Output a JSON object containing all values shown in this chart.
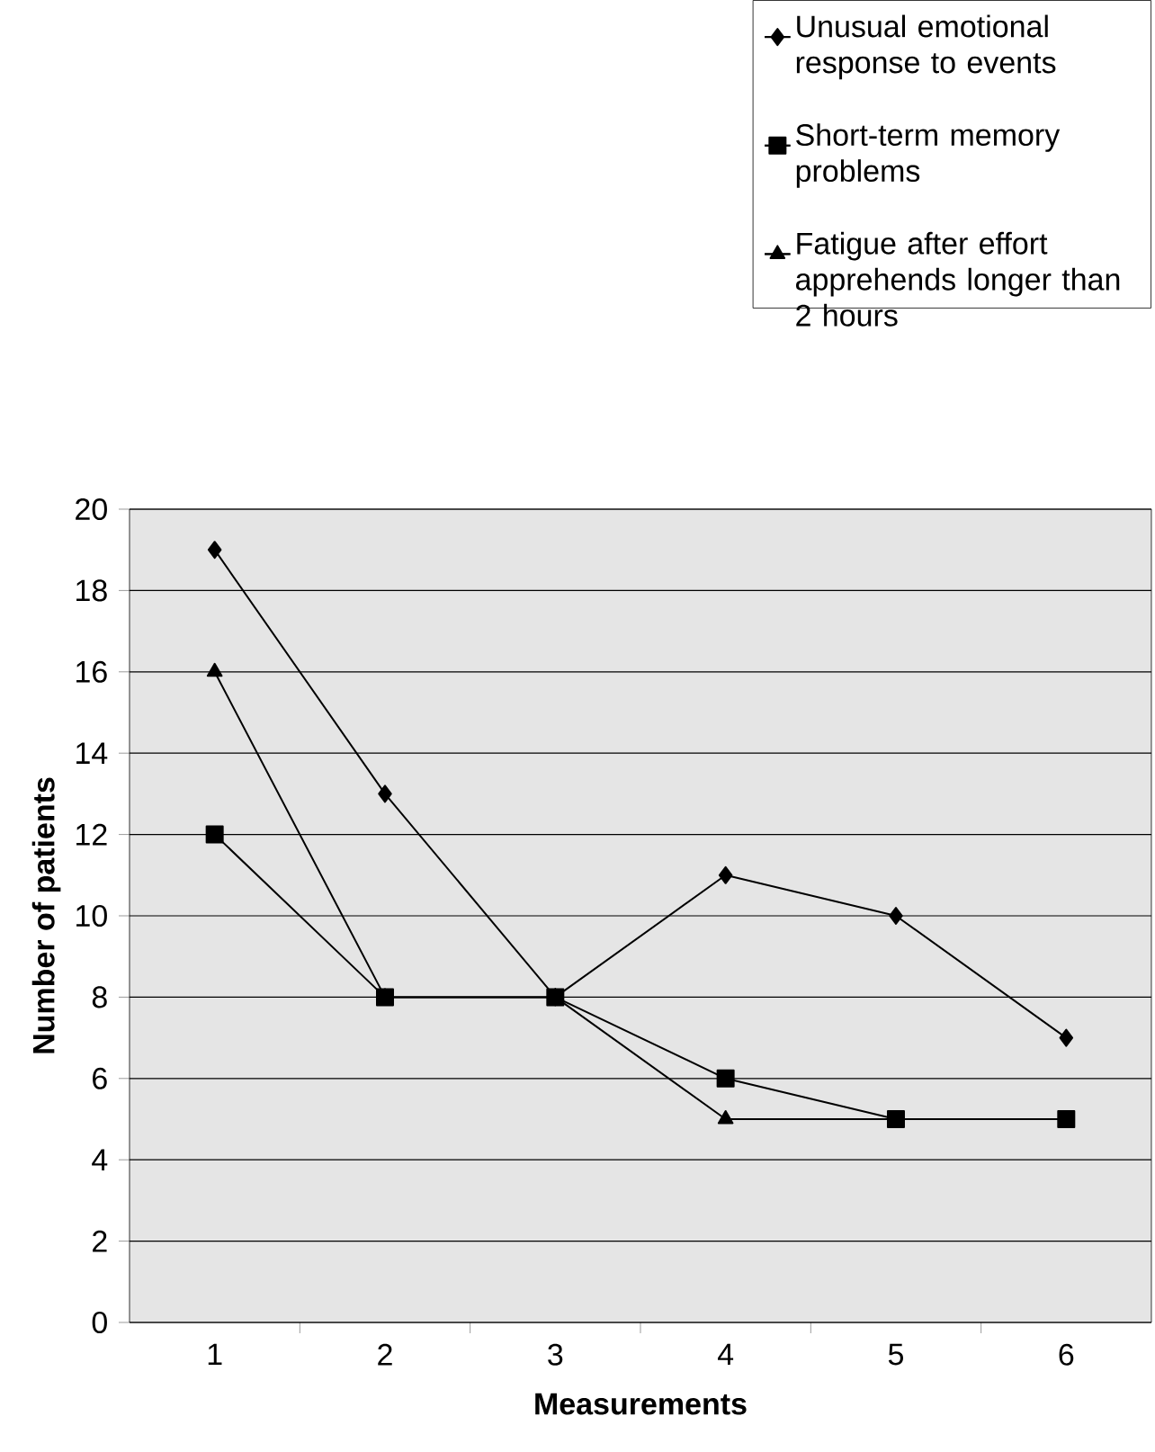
{
  "chart_data": {
    "type": "line",
    "xlabel": "Measurements",
    "ylabel": "Number of patients",
    "categories": [
      "1",
      "2",
      "3",
      "4",
      "5",
      "6"
    ],
    "series": [
      {
        "name": "Unusual emotional response to events",
        "color": "#000000",
        "marker": "diamond",
        "values": [
          19,
          13,
          8,
          11,
          10,
          7
        ]
      },
      {
        "name": "Short-term memory problems",
        "color": "#000000",
        "marker": "square",
        "values": [
          12,
          8,
          8,
          6,
          5,
          5
        ]
      },
      {
        "name": "Fatigue after effort apprehends longer than 2 hours",
        "color": "#000000",
        "marker": "triangle",
        "values": [
          16,
          8,
          8,
          5,
          5,
          5
        ]
      }
    ],
    "ylim": [
      0,
      20
    ],
    "yticks": [
      0,
      2,
      4,
      6,
      8,
      10,
      12,
      14,
      16,
      18,
      20
    ],
    "grid": "y",
    "legend": "top right",
    "line_style": "solid"
  }
}
